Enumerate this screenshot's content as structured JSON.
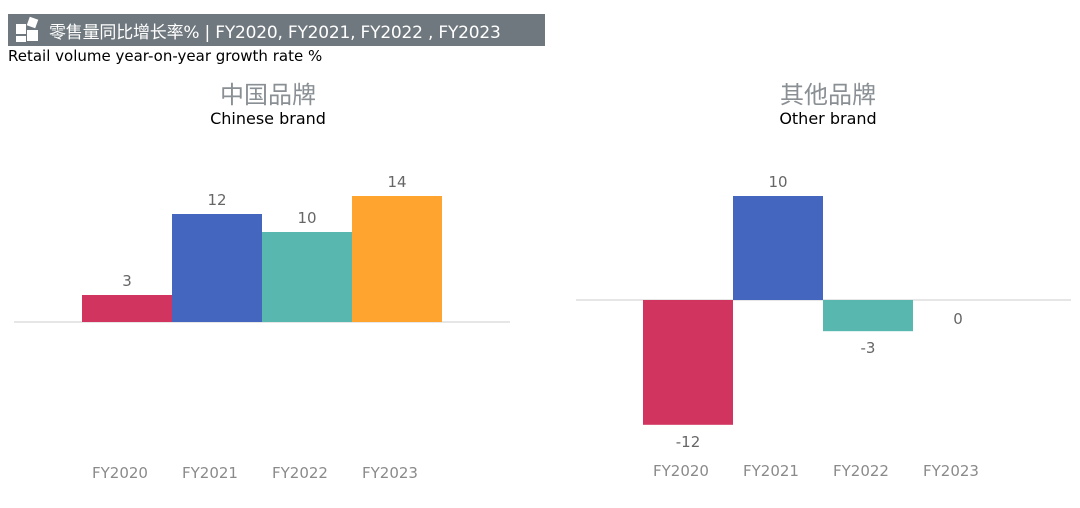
{
  "header": {
    "title": "零售量同比增长率% | FY2020, FY2021, FY2022 , FY2023",
    "subtitle": "Retail volume year-on-year growth rate %"
  },
  "panels": [
    {
      "title_zh": "中国品牌",
      "title_en": "Chinese brand"
    },
    {
      "title_zh": "其他品牌",
      "title_en": "Other brand"
    }
  ],
  "colors": {
    "FY2020": "#d0345f",
    "FY2021": "#4466bf",
    "FY2022": "#58b8b0",
    "FY2023": "#ffa42f",
    "title_bar": "#6f787e",
    "label": "#666666",
    "axis": "#dddddd"
  },
  "chart_data": [
    {
      "type": "bar",
      "title": "中国品牌",
      "subtitle": "Chinese brand",
      "categories": [
        "FY2020",
        "FY2021",
        "FY2022",
        "FY2023"
      ],
      "values": [
        3,
        12,
        10,
        14
      ],
      "data_labels": [
        "3",
        "12",
        "10",
        "14"
      ],
      "ylim": [
        -12,
        15
      ],
      "grid": false,
      "legend": "none"
    },
    {
      "type": "bar",
      "title": "其他品牌",
      "subtitle": "Other brand",
      "categories": [
        "FY2020",
        "FY2021",
        "FY2022",
        "FY2023"
      ],
      "values": [
        -12,
        10,
        -3,
        0
      ],
      "data_labels": [
        "-12",
        "10",
        "-3",
        "0"
      ],
      "ylim": [
        -13,
        12
      ],
      "grid": false,
      "legend": "none"
    }
  ]
}
